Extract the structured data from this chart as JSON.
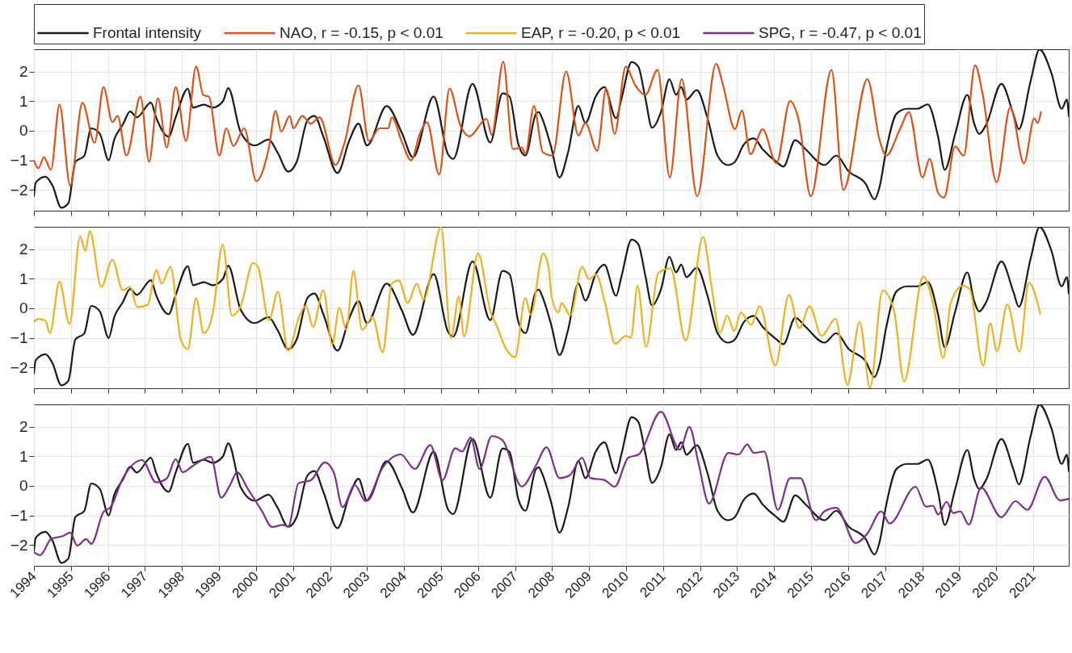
{
  "chart_data": [
    {
      "type": "line",
      "xlim": [
        1994,
        2021.96
      ],
      "xticks": [
        1994,
        1995,
        1996,
        1997,
        1998,
        1999,
        2000,
        2001,
        2002,
        2003,
        2004,
        2005,
        2006,
        2007,
        2008,
        2009,
        2010,
        2011,
        2012,
        2013,
        2014,
        2015,
        2016,
        2017,
        2018,
        2019,
        2020,
        2021
      ],
      "ylim": [
        -2.7,
        2.75
      ],
      "yticks": [
        -2,
        -1,
        0,
        1,
        2
      ],
      "grid": true,
      "legend": "top",
      "tick_labels": "y",
      "series": [
        {
          "name": "Frontal intensity",
          "color": "#1a1a1a",
          "x": [
            1994.0,
            1994.05,
            1994.31,
            1994.5,
            1994.74,
            1994.93,
            1995.12,
            1995.36,
            1995.55,
            1995.78,
            1996.02,
            1996.17,
            1996.4,
            1996.6,
            1996.78,
            1997.16,
            1997.3,
            1997.64,
            1997.83,
            1998.16,
            1998.3,
            1998.59,
            1998.83,
            1999.11,
            1999.25,
            1999.58,
            1999.96,
            2000.34,
            2000.58,
            2000.87,
            2001.1,
            2001.39,
            2001.58,
            2001.82,
            2002.2,
            2002.53,
            2002.77,
            2003.0,
            2003.53,
            2003.95,
            2004.24,
            2004.8,
            2005.19,
            2005.33,
            2005.85,
            2006.33,
            2006.66,
            2006.85,
            2007.09,
            2007.28,
            2007.56,
            2007.64,
            2007.73,
            2007.97,
            2008.2,
            2008.43,
            2008.71,
            2008.9,
            2009.18,
            2009.41,
            2009.73,
            2009.87,
            2010.15,
            2010.33,
            2010.52,
            2010.7,
            2010.94,
            2011.17,
            2011.35,
            2011.49,
            2011.63,
            2011.91,
            2012.2,
            2012.47,
            2012.75,
            2012.94,
            2013.18,
            2013.45,
            2013.69,
            2014.06,
            2014.25,
            2014.57,
            2014.85,
            2015.36,
            2015.68,
            2016.01,
            2016.47,
            2016.71,
            2016.85,
            2017.03,
            2017.31,
            2017.59,
            2017.87,
            2018.15,
            2018.43,
            2018.61,
            2018.89,
            2019.22,
            2019.4,
            2019.54,
            2019.73,
            2020.14,
            2020.47,
            2020.61,
            2020.93,
            2021.17,
            2021.49,
            2021.77,
            2021.91,
            2021.96
          ],
          "values": [
            -2.2,
            -1.75,
            -1.55,
            -1.85,
            -2.6,
            -2.45,
            -1.05,
            -0.85,
            0.08,
            -0.1,
            -1.0,
            -0.3,
            0.2,
            0.65,
            0.45,
            0.95,
            0.45,
            -0.2,
            0.45,
            1.42,
            0.78,
            0.88,
            0.78,
            1.0,
            1.44,
            -0.03,
            -0.5,
            -0.3,
            -0.73,
            -1.38,
            -1.05,
            0.35,
            0.5,
            -0.2,
            -1.43,
            -0.3,
            0.24,
            -0.5,
            0.83,
            -0.1,
            -0.9,
            1.15,
            -0.8,
            -0.95,
            1.58,
            -0.4,
            1.26,
            1.15,
            -0.46,
            -0.84,
            0.56,
            0.63,
            0.42,
            -0.53,
            -1.58,
            -0.74,
            0.84,
            0.26,
            1.16,
            1.47,
            0.42,
            1.05,
            2.32,
            2.16,
            1.1,
            0.1,
            0.63,
            1.74,
            1.21,
            1.47,
            1.05,
            1.37,
            0.42,
            -0.84,
            -1.16,
            -1.05,
            -0.47,
            -0.26,
            -0.63,
            -1.05,
            -1.21,
            -0.32,
            -0.63,
            -1.16,
            -0.84,
            -1.37,
            -1.79,
            -2.32,
            -1.89,
            -0.63,
            0.58,
            0.74,
            0.74,
            0.89,
            -0.21,
            -1.32,
            -0.11,
            1.21,
            0.26,
            -0.11,
            0.21,
            1.58,
            0.53,
            0.05,
            1.68,
            2.74,
            1.95,
            0.74,
            1.05,
            0.5
          ]
        },
        {
          "name": "NAO, r = -0.15, p < 0.01",
          "color": "#d95319",
          "x": [
            1994.0,
            1994.12,
            1994.27,
            1994.46,
            1994.69,
            1994.98,
            1995.31,
            1995.64,
            1995.88,
            1996.12,
            1996.26,
            1996.5,
            1996.88,
            1997.11,
            1997.35,
            1997.59,
            1997.83,
            1998.11,
            1998.38,
            1998.58,
            1998.73,
            1999.01,
            1999.2,
            1999.39,
            1999.68,
            2000.01,
            2000.34,
            2000.53,
            2000.68,
            2000.91,
            2001.01,
            2001.25,
            2001.48,
            2001.72,
            2002.15,
            2002.39,
            2002.77,
            2003.05,
            2003.34,
            2003.57,
            2003.67,
            2003.95,
            2004.19,
            2004.43,
            2004.62,
            2004.95,
            2005.23,
            2005.52,
            2005.76,
            2006.23,
            2006.37,
            2006.68,
            2006.94,
            2007.18,
            2007.28,
            2007.51,
            2007.75,
            2008.01,
            2008.38,
            2008.71,
            2008.9,
            2009.22,
            2009.46,
            2009.69,
            2009.99,
            2010.25,
            2010.52,
            2010.85,
            2011.18,
            2011.5,
            2011.92,
            2012.43,
            2012.62,
            2012.94,
            2013.13,
            2013.36,
            2013.69,
            2014.06,
            2014.43,
            2014.66,
            2014.99,
            2015.55,
            2015.87,
            2016.52,
            2016.85,
            2017.03,
            2017.4,
            2017.64,
            2018.01,
            2018.2,
            2018.43,
            2018.59,
            2018.89,
            2019.12,
            2019.43,
            2019.63,
            2020.01,
            2020.38,
            2020.75,
            2021.03,
            2021.12,
            2021.21
          ],
          "values": [
            -1.0,
            -1.27,
            -0.9,
            -1.32,
            0.88,
            -1.86,
            0.94,
            -0.41,
            1.47,
            0.29,
            0.5,
            -0.84,
            1.15,
            -1.05,
            1.1,
            -0.57,
            1.47,
            -0.35,
            2.17,
            1.2,
            1.15,
            -0.84,
            0.08,
            -0.52,
            0.08,
            -1.7,
            -0.62,
            0.67,
            -0.03,
            0.5,
            0.08,
            0.5,
            0.24,
            0.45,
            -1.16,
            -0.41,
            1.53,
            -0.35,
            0.08,
            0.08,
            0.45,
            -0.41,
            -1.0,
            -0.09,
            0.29,
            -1.48,
            1.42,
            0.18,
            -0.19,
            0.4,
            -0.14,
            2.33,
            -0.62,
            -0.57,
            -0.78,
            0.83,
            -0.73,
            -0.84,
            2.0,
            -0.16,
            0.26,
            -0.68,
            1.42,
            -0.11,
            2.16,
            1.53,
            1.21,
            2.05,
            -1.58,
            1.74,
            -2.21,
            2.26,
            1.53,
            0.05,
            0.68,
            -0.79,
            0.05,
            -1.1,
            1.0,
            0.37,
            -2.21,
            2.05,
            -2.0,
            1.74,
            -0.32,
            -0.84,
            0.05,
            0.63,
            -1.58,
            -0.95,
            -2.1,
            -2.26,
            -0.53,
            -0.84,
            2.21,
            1.26,
            -1.74,
            0.79,
            -1.1,
            0.42,
            0.26,
            0.63
          ]
        }
      ]
    },
    {
      "type": "line",
      "xlim": [
        1994,
        2021.96
      ],
      "xticks": [
        1994,
        1995,
        1996,
        1997,
        1998,
        1999,
        2000,
        2001,
        2002,
        2003,
        2004,
        2005,
        2006,
        2007,
        2008,
        2009,
        2010,
        2011,
        2012,
        2013,
        2014,
        2015,
        2016,
        2017,
        2018,
        2019,
        2020,
        2021
      ],
      "ylim": [
        -2.7,
        2.75
      ],
      "yticks": [
        -2,
        -1,
        0,
        1,
        2
      ],
      "grid": true,
      "legend": "top",
      "tick_labels": "y",
      "series": [
        {
          "name": "Frontal intensity",
          "color": "#1a1a1a",
          "x": [
            1994.0,
            1994.05,
            1994.31,
            1994.5,
            1994.74,
            1994.93,
            1995.12,
            1995.36,
            1995.55,
            1995.78,
            1996.02,
            1996.17,
            1996.4,
            1996.6,
            1996.78,
            1997.16,
            1997.3,
            1997.64,
            1997.83,
            1998.16,
            1998.3,
            1998.59,
            1998.83,
            1999.11,
            1999.25,
            1999.58,
            1999.96,
            2000.34,
            2000.58,
            2000.87,
            2001.1,
            2001.39,
            2001.58,
            2001.82,
            2002.2,
            2002.53,
            2002.77,
            2003.0,
            2003.53,
            2003.95,
            2004.24,
            2004.8,
            2005.19,
            2005.33,
            2005.85,
            2006.33,
            2006.66,
            2006.85,
            2007.09,
            2007.28,
            2007.56,
            2007.64,
            2007.73,
            2007.97,
            2008.2,
            2008.43,
            2008.71,
            2008.9,
            2009.18,
            2009.41,
            2009.73,
            2009.87,
            2010.15,
            2010.33,
            2010.52,
            2010.7,
            2010.94,
            2011.17,
            2011.35,
            2011.49,
            2011.63,
            2011.91,
            2012.2,
            2012.47,
            2012.75,
            2012.94,
            2013.18,
            2013.45,
            2013.69,
            2014.06,
            2014.25,
            2014.57,
            2014.85,
            2015.36,
            2015.68,
            2016.01,
            2016.47,
            2016.71,
            2016.85,
            2017.03,
            2017.31,
            2017.59,
            2017.87,
            2018.15,
            2018.43,
            2018.61,
            2018.89,
            2019.22,
            2019.4,
            2019.54,
            2019.73,
            2020.14,
            2020.47,
            2020.61,
            2020.93,
            2021.17,
            2021.49,
            2021.77,
            2021.91,
            2021.96
          ],
          "values": [
            -2.2,
            -1.75,
            -1.55,
            -1.85,
            -2.6,
            -2.45,
            -1.05,
            -0.85,
            0.08,
            -0.1,
            -1.0,
            -0.3,
            0.2,
            0.65,
            0.45,
            0.95,
            0.45,
            -0.2,
            0.45,
            1.42,
            0.78,
            0.88,
            0.78,
            1.0,
            1.44,
            -0.03,
            -0.5,
            -0.3,
            -0.73,
            -1.38,
            -1.05,
            0.35,
            0.5,
            -0.2,
            -1.43,
            -0.3,
            0.24,
            -0.5,
            0.83,
            -0.1,
            -0.9,
            1.15,
            -0.8,
            -0.95,
            1.58,
            -0.4,
            1.26,
            1.15,
            -0.46,
            -0.84,
            0.56,
            0.63,
            0.42,
            -0.53,
            -1.58,
            -0.74,
            0.84,
            0.26,
            1.16,
            1.47,
            0.42,
            1.05,
            2.32,
            2.16,
            1.1,
            0.1,
            0.63,
            1.74,
            1.21,
            1.47,
            1.05,
            1.37,
            0.42,
            -0.84,
            -1.16,
            -1.05,
            -0.47,
            -0.26,
            -0.63,
            -1.05,
            -1.21,
            -0.32,
            -0.63,
            -1.16,
            -0.84,
            -1.37,
            -1.79,
            -2.32,
            -1.89,
            -0.63,
            0.58,
            0.74,
            0.74,
            0.89,
            -0.21,
            -1.32,
            -0.11,
            1.21,
            0.26,
            -0.11,
            0.21,
            1.58,
            0.53,
            0.05,
            1.68,
            2.74,
            1.95,
            0.74,
            1.05,
            0.5
          ]
        },
        {
          "name": "EAP, r = -0.20, p < 0.01",
          "color": "#edb120",
          "x": [
            1994.0,
            1994.12,
            1994.31,
            1994.43,
            1994.69,
            1994.96,
            1995.25,
            1995.39,
            1995.51,
            1995.82,
            1996.12,
            1996.4,
            1996.6,
            1996.79,
            1997.07,
            1997.31,
            1997.45,
            1997.69,
            1997.97,
            1998.16,
            1998.38,
            1998.59,
            1998.83,
            1999.1,
            1999.35,
            1999.59,
            1999.92,
            2000.06,
            2000.35,
            2000.59,
            2000.87,
            2001.16,
            2001.35,
            2001.54,
            2001.82,
            2002.06,
            2002.25,
            2002.44,
            2002.63,
            2002.87,
            2003.15,
            2003.42,
            2003.67,
            2003.86,
            2004.1,
            2004.34,
            2004.53,
            2005.0,
            2005.27,
            2005.48,
            2005.62,
            2006.0,
            2006.34,
            2006.48,
            2006.76,
            2007.0,
            2007.28,
            2007.42,
            2007.76,
            2007.9,
            2007.99,
            2008.17,
            2008.26,
            2008.49,
            2008.81,
            2009.0,
            2009.19,
            2009.43,
            2009.71,
            2009.99,
            2010.13,
            2010.31,
            2010.54,
            2010.87,
            2011.2,
            2011.61,
            2012.08,
            2012.31,
            2012.54,
            2012.73,
            2012.92,
            2013.1,
            2013.38,
            2013.61,
            2014.03,
            2014.4,
            2014.68,
            2014.96,
            2015.28,
            2015.66,
            2015.98,
            2016.31,
            2016.59,
            2016.93,
            2017.24,
            2017.51,
            2018.03,
            2018.3,
            2018.57,
            2018.77,
            2019.09,
            2019.28,
            2019.65,
            2019.84,
            2020.02,
            2020.3,
            2020.63,
            2020.88,
            2021.19
          ],
          "values": [
            -0.46,
            -0.36,
            -0.41,
            -0.84,
            0.9,
            -0.54,
            2.42,
            1.94,
            2.61,
            0.72,
            1.64,
            0.61,
            0.72,
            0.04,
            0.11,
            1.29,
            0.83,
            1.4,
            -1.06,
            -1.38,
            0.35,
            -0.84,
            -0.19,
            2.16,
            -0.25,
            0.08,
            1.53,
            1.37,
            -0.41,
            0.56,
            -1.43,
            -0.3,
            0.08,
            -0.63,
            0.61,
            -1.22,
            0.02,
            -0.73,
            1.26,
            -0.73,
            -0.3,
            -1.49,
            0.83,
            0.94,
            0.18,
            0.83,
            0.29,
            2.74,
            -1.0,
            0.4,
            -0.95,
            1.85,
            -0.14,
            -0.52,
            -1.38,
            -1.65,
            0.35,
            -0.22,
            1.85,
            1.42,
            0.39,
            -0.14,
            0.18,
            -0.24,
            1.4,
            0.98,
            1.14,
            0.18,
            -1.2,
            -0.93,
            -0.99,
            0.76,
            -1.31,
            1.19,
            1.35,
            -1.09,
            2.41,
            0.71,
            -0.83,
            -0.24,
            -0.77,
            -0.14,
            -0.56,
            0.07,
            -1.94,
            0.45,
            -0.67,
            0.07,
            -0.93,
            -0.35,
            -2.58,
            -0.46,
            -2.68,
            0.6,
            -0.08,
            -2.47,
            1.08,
            0.13,
            -1.68,
            0.18,
            0.76,
            0.66,
            -1.94,
            -0.51,
            -1.46,
            0.13,
            -1.46,
            0.87,
            -0.19
          ]
        }
      ]
    },
    {
      "type": "line",
      "xlim": [
        1994,
        2021.96
      ],
      "xticks": [
        1994,
        1995,
        1996,
        1997,
        1998,
        1999,
        2000,
        2001,
        2002,
        2003,
        2004,
        2005,
        2006,
        2007,
        2008,
        2009,
        2010,
        2011,
        2012,
        2013,
        2014,
        2015,
        2016,
        2017,
        2018,
        2019,
        2020,
        2021
      ],
      "ylim": [
        -2.7,
        2.75
      ],
      "yticks": [
        -2,
        -1,
        0,
        1,
        2
      ],
      "grid": true,
      "legend": "top",
      "series": [
        {
          "name": "Frontal intensity",
          "color": "#1a1a1a",
          "x": [
            1994.0,
            1994.05,
            1994.31,
            1994.5,
            1994.74,
            1994.93,
            1995.12,
            1995.36,
            1995.55,
            1995.78,
            1996.02,
            1996.17,
            1996.4,
            1996.6,
            1996.78,
            1997.16,
            1997.3,
            1997.64,
            1997.83,
            1998.16,
            1998.3,
            1998.59,
            1998.83,
            1999.11,
            1999.25,
            1999.58,
            1999.96,
            2000.34,
            2000.58,
            2000.87,
            2001.1,
            2001.39,
            2001.58,
            2001.82,
            2002.2,
            2002.53,
            2002.77,
            2003.0,
            2003.53,
            2003.95,
            2004.24,
            2004.8,
            2005.19,
            2005.33,
            2005.85,
            2006.33,
            2006.66,
            2006.85,
            2007.09,
            2007.28,
            2007.56,
            2007.64,
            2007.73,
            2007.97,
            2008.2,
            2008.43,
            2008.71,
            2008.9,
            2009.18,
            2009.41,
            2009.73,
            2009.87,
            2010.15,
            2010.33,
            2010.52,
            2010.7,
            2010.94,
            2011.17,
            2011.35,
            2011.49,
            2011.63,
            2011.91,
            2012.2,
            2012.47,
            2012.75,
            2012.94,
            2013.18,
            2013.45,
            2013.69,
            2014.06,
            2014.25,
            2014.57,
            2014.85,
            2015.36,
            2015.68,
            2016.01,
            2016.47,
            2016.71,
            2016.85,
            2017.03,
            2017.31,
            2017.59,
            2017.87,
            2018.15,
            2018.43,
            2018.61,
            2018.89,
            2019.22,
            2019.4,
            2019.54,
            2019.73,
            2020.14,
            2020.47,
            2020.61,
            2020.93,
            2021.17,
            2021.49,
            2021.77,
            2021.91,
            2021.96
          ],
          "values": [
            -2.2,
            -1.75,
            -1.55,
            -1.85,
            -2.6,
            -2.45,
            -1.05,
            -0.85,
            0.08,
            -0.1,
            -1.0,
            -0.3,
            0.2,
            0.65,
            0.45,
            0.95,
            0.45,
            -0.2,
            0.45,
            1.42,
            0.78,
            0.88,
            0.78,
            1.0,
            1.44,
            -0.03,
            -0.5,
            -0.3,
            -0.73,
            -1.38,
            -1.05,
            0.35,
            0.5,
            -0.2,
            -1.43,
            -0.3,
            0.24,
            -0.5,
            0.83,
            -0.1,
            -0.9,
            1.15,
            -0.8,
            -0.95,
            1.58,
            -0.4,
            1.26,
            1.15,
            -0.46,
            -0.84,
            0.56,
            0.63,
            0.42,
            -0.53,
            -1.58,
            -0.74,
            0.84,
            0.26,
            1.16,
            1.47,
            0.42,
            1.05,
            2.32,
            2.16,
            1.1,
            0.1,
            0.63,
            1.74,
            1.21,
            1.47,
            1.05,
            1.37,
            0.42,
            -0.84,
            -1.16,
            -1.05,
            -0.47,
            -0.26,
            -0.63,
            -1.05,
            -1.21,
            -0.32,
            -0.63,
            -1.16,
            -0.84,
            -1.37,
            -1.79,
            -2.32,
            -1.89,
            -0.63,
            0.58,
            0.74,
            0.74,
            0.89,
            -0.21,
            -1.32,
            -0.11,
            1.21,
            0.26,
            -0.11,
            0.21,
            1.58,
            0.53,
            0.05,
            1.68,
            2.74,
            1.95,
            0.74,
            1.05,
            0.5
          ]
        },
        {
          "name": "SPG, r = -0.47, p < 0.01",
          "color": "#7e2f8e",
          "x": [
            1994.0,
            1994.17,
            1994.46,
            1994.79,
            1994.98,
            1995.17,
            1995.41,
            1995.55,
            1995.88,
            1996.07,
            1996.4,
            1996.92,
            1997.3,
            1997.59,
            1997.83,
            1998.02,
            1998.3,
            1998.78,
            1999.06,
            1999.3,
            1999.49,
            1999.77,
            2000.15,
            2000.44,
            2000.72,
            2000.87,
            2001.15,
            2001.48,
            2001.86,
            2002.1,
            2002.34,
            2002.67,
            2002.96,
            2003.43,
            2003.91,
            2004.29,
            2004.71,
            2005.04,
            2005.38,
            2005.57,
            2005.8,
            2006.04,
            2006.37,
            2006.66,
            2007.18,
            2007.56,
            2007.85,
            2008.2,
            2008.48,
            2008.81,
            2009.04,
            2009.41,
            2009.69,
            2010.06,
            2010.34,
            2010.94,
            2011.45,
            2011.71,
            2011.96,
            2012.24,
            2012.76,
            2013.04,
            2013.27,
            2013.45,
            2013.73,
            2014.1,
            2014.43,
            2014.71,
            2015.13,
            2015.36,
            2015.68,
            2016.2,
            2016.52,
            2016.89,
            2017.12,
            2017.82,
            2018.1,
            2018.29,
            2018.43,
            2018.66,
            2018.84,
            2019.03,
            2019.26,
            2019.59,
            2020.14,
            2020.52,
            2020.84,
            2021.31,
            2021.72,
            2021.95
          ],
          "values": [
            -2.23,
            -2.34,
            -1.8,
            -1.69,
            -1.58,
            -2.02,
            -1.8,
            -1.96,
            -0.88,
            -0.72,
            0.25,
            0.87,
            0.12,
            0.25,
            0.9,
            0.46,
            0.68,
            0.98,
            -0.4,
            0.03,
            0.46,
            -0.08,
            -0.83,
            -1.39,
            -1.32,
            -1.37,
            0.09,
            0.19,
            0.79,
            0.46,
            -0.72,
            0.03,
            -0.51,
            0.63,
            1.06,
            0.57,
            1.38,
            0.19,
            1.27,
            1.16,
            1.63,
            0.57,
            1.68,
            1.54,
            -0.02,
            0.68,
            1.3,
            0.26,
            0.36,
            0.95,
            0.26,
            0.2,
            -0.03,
            0.95,
            1.06,
            2.5,
            1.22,
            1.99,
            0.74,
            -0.6,
            1.11,
            1.06,
            1.4,
            1.11,
            1.16,
            -0.81,
            0.26,
            0.26,
            -1.16,
            -0.86,
            -0.74,
            -1.93,
            -1.61,
            -0.86,
            -1.27,
            -0.03,
            -0.7,
            -0.67,
            -0.97,
            -0.54,
            -0.92,
            -0.86,
            -1.31,
            -0.06,
            -1.06,
            -0.52,
            -0.81,
            0.31,
            -0.49,
            -0.44
          ]
        }
      ]
    }
  ]
}
